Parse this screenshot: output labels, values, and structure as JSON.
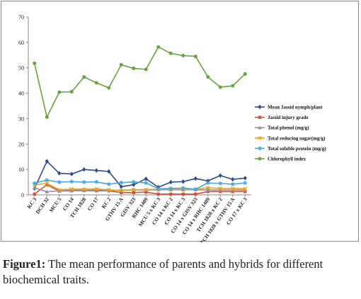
{
  "chart_data": {
    "type": "line",
    "title": "",
    "xlabel": "",
    "ylabel": "",
    "ylim": [
      0,
      70
    ],
    "yticks": [
      0,
      10,
      20,
      30,
      40,
      50,
      60,
      70
    ],
    "grid": false,
    "legend_position": "right",
    "categories": [
      "KC 3",
      "DCH 32",
      "MCU 5",
      "CO 14",
      "TCH 1828",
      "CO 17",
      "KC 2",
      "GTHV 15 A",
      "GISV 323",
      "RHC 1409",
      "MCU 5 x KC 3",
      "CO 14 x KC 2",
      "CO 14 x KC 3",
      "CO 14 x GISV 323",
      "CO 14 x RHC 1409",
      "TCH 1828 x KC 2",
      "TCH 1828 x GTHV 15 A",
      "CO 17 x KC 3"
    ],
    "series": [
      {
        "name": "Mean Jassid nymph/plant",
        "color": "#2e4a8c",
        "marker": "diamond",
        "values": [
          2.5,
          13.2,
          8.5,
          8.2,
          10.0,
          9.6,
          9.2,
          3.2,
          4.0,
          6.3,
          3.0,
          5.0,
          5.2,
          6.4,
          5.5,
          7.6,
          6.1,
          6.6
        ]
      },
      {
        "name": "Jassid injury grade",
        "color": "#d0543a",
        "marker": "square",
        "values": [
          0.3,
          4.0,
          1.5,
          1.6,
          1.7,
          1.6,
          1.6,
          0.9,
          0.9,
          1.1,
          0.3,
          0.3,
          0.3,
          0.3,
          1.3,
          1.3,
          1.3,
          1.3
        ]
      },
      {
        "name": "Total phenol (mg/g)",
        "color": "#9a8fa6",
        "marker": "triangle",
        "values": [
          2.8,
          1.2,
          1.6,
          1.8,
          1.9,
          1.9,
          1.8,
          1.8,
          2.0,
          1.9,
          2.0,
          2.0,
          2.0,
          2.0,
          1.9,
          1.9,
          1.9,
          1.9
        ]
      },
      {
        "name": "Total reducing sugar(mg/g)",
        "color": "#e8a21c",
        "marker": "x",
        "values": [
          4.0,
          4.5,
          2.0,
          2.3,
          2.2,
          2.3,
          2.0,
          1.6,
          2.0,
          2.1,
          2.2,
          2.2,
          2.2,
          2.1,
          2.8,
          2.5,
          2.5,
          2.4
        ]
      },
      {
        "name": "Total soluble protein  (mg/g)",
        "color": "#4aa8d8",
        "marker": "star",
        "values": [
          4.6,
          5.8,
          5.0,
          5.2,
          5.0,
          5.1,
          4.2,
          4.8,
          5.1,
          4.7,
          2.4,
          2.5,
          2.7,
          2.2,
          4.7,
          4.5,
          4.2,
          4.7
        ]
      },
      {
        "name": "Chlorophyll index",
        "color": "#6aa344",
        "marker": "circle",
        "values": [
          51.8,
          30.6,
          40.4,
          40.6,
          46.4,
          44.1,
          42.1,
          51.2,
          49.8,
          49.4,
          58.2,
          55.7,
          54.8,
          54.5,
          46.4,
          42.4,
          42.9,
          47.6
        ]
      }
    ]
  },
  "caption": {
    "label": "Figure1:",
    "text": " The mean performance of parents and hybrids for different biochemical traits."
  }
}
